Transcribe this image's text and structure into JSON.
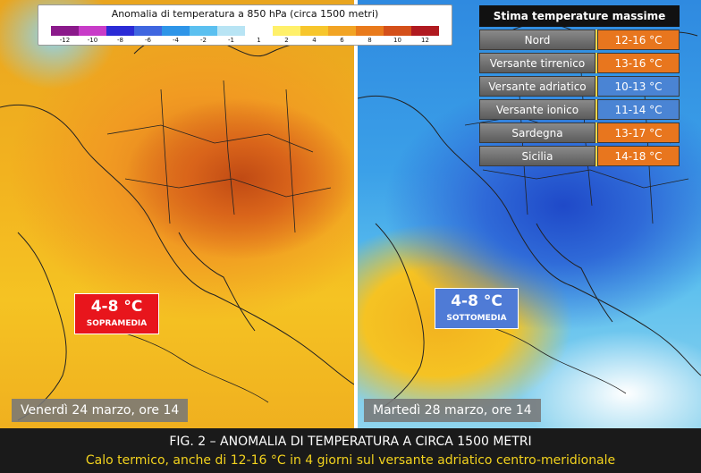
{
  "legend": {
    "title": "Anomalia di temperatura a 850 hPa (circa 1500 metri)",
    "ticks": [
      "-12",
      "-10",
      "-8",
      "-6",
      "-4",
      "-2",
      "-1",
      "1",
      "2",
      "4",
      "6",
      "8",
      "10",
      "12"
    ],
    "colors": [
      "#8b1a8b",
      "#c83cc8",
      "#2b2bd6",
      "#3f66e0",
      "#2e95e8",
      "#5bc0f0",
      "#b8e4f4",
      "#ffffff",
      "#fff06a",
      "#f7c62c",
      "#f2a424",
      "#e97a1c",
      "#d4501a",
      "#b01a20"
    ]
  },
  "table": {
    "header": "Stima temperature massime",
    "rows": [
      {
        "region": "Nord",
        "value": "12-16 °C",
        "color": "#e8761e"
      },
      {
        "region": "Versante tirrenico",
        "value": "13-16 °C",
        "color": "#e8761e"
      },
      {
        "region": "Versante adriatico",
        "value": "10-13 °C",
        "color": "#4a84d4"
      },
      {
        "region": "Versante ionico",
        "value": "11-14 °C",
        "color": "#4a84d4"
      },
      {
        "region": "Sardegna",
        "value": "13-17 °C",
        "color": "#e8761e"
      },
      {
        "region": "Sicilia",
        "value": "14-18 °C",
        "color": "#e8761e"
      }
    ]
  },
  "left_map": {
    "badge_value": "4-8 °C",
    "badge_label": "SOPRAMEDIA",
    "date": "Venerdì 24 marzo, ore 14"
  },
  "right_map": {
    "badge_value": "4-8 °C",
    "badge_label": "SOTTOMEDIA",
    "date": "Martedì 28 marzo, ore 14"
  },
  "caption": {
    "title": "FIG. 2 – ANOMALIA DI TEMPERATURA A CIRCA 1500 METRI",
    "subtitle": "Calo termico, anche di 12-16 °C in 4 giorni sul versante adriatico centro-meridionale"
  }
}
